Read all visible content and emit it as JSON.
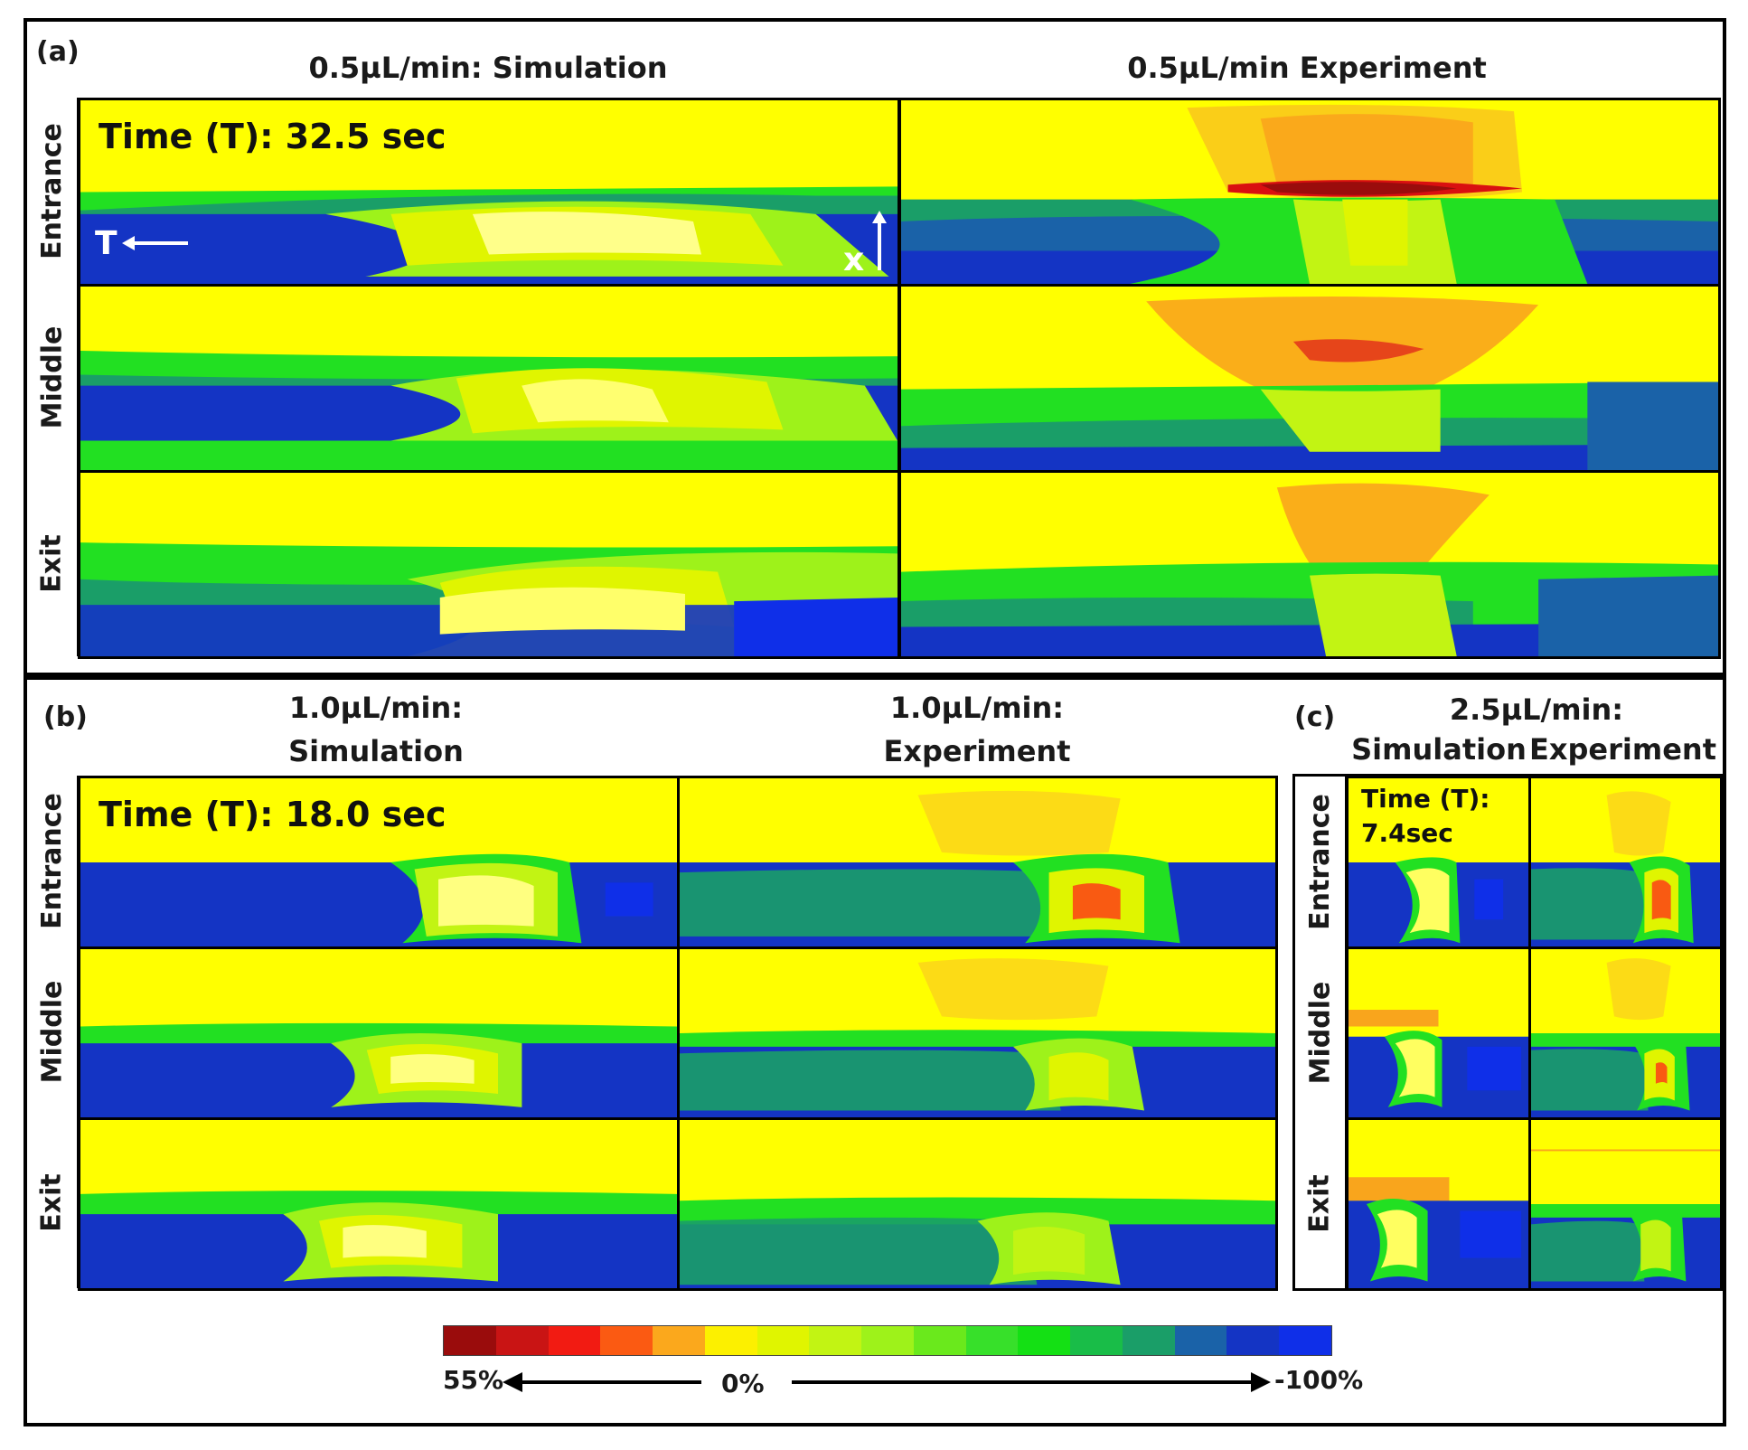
{
  "panel_a": {
    "label": "(a)",
    "sim_header": "0.5µL/min: Simulation",
    "exp_header": "0.5µL/min Experiment",
    "time_label": "Time (T): 32.5 sec",
    "axis_T": "T",
    "axis_x": "x"
  },
  "panel_b": {
    "label": "(b)",
    "sim_header_line1": "1.0µL/min:",
    "sim_header_line2": "Simulation",
    "exp_header_line1": "1.0µL/min:",
    "exp_header_line2": "Experiment",
    "time_label": "Time (T): 18.0 sec"
  },
  "panel_c": {
    "label": "(c)",
    "rate_header": "2.5µL/min:",
    "sim_header": "Simulation",
    "exp_header": "Experiment",
    "time_label_line1": "Time (T):",
    "time_label_line2": "7.4sec"
  },
  "rows": [
    "Entrance",
    "Middle",
    "Exit"
  ],
  "colorbar": {
    "min_label": "55%",
    "mid_label": "0%",
    "max_label": "-100%",
    "colors": [
      "#9a0c0c",
      "#c91414",
      "#f21b12",
      "#fb5a12",
      "#fba81c",
      "#fcf000",
      "#e0f500",
      "#c2f413",
      "#9ef21a",
      "#6ae91c",
      "#37e02a",
      "#14e014",
      "#19bd48",
      "#1a9e68",
      "#1a62a8",
      "#1434c4",
      "#0f2fe8"
    ]
  },
  "colors": {
    "yellow": "#ffff00",
    "blue": "#1434c4",
    "green": "#22e022",
    "orange": "#f9a51c",
    "red": "#d90f10"
  }
}
